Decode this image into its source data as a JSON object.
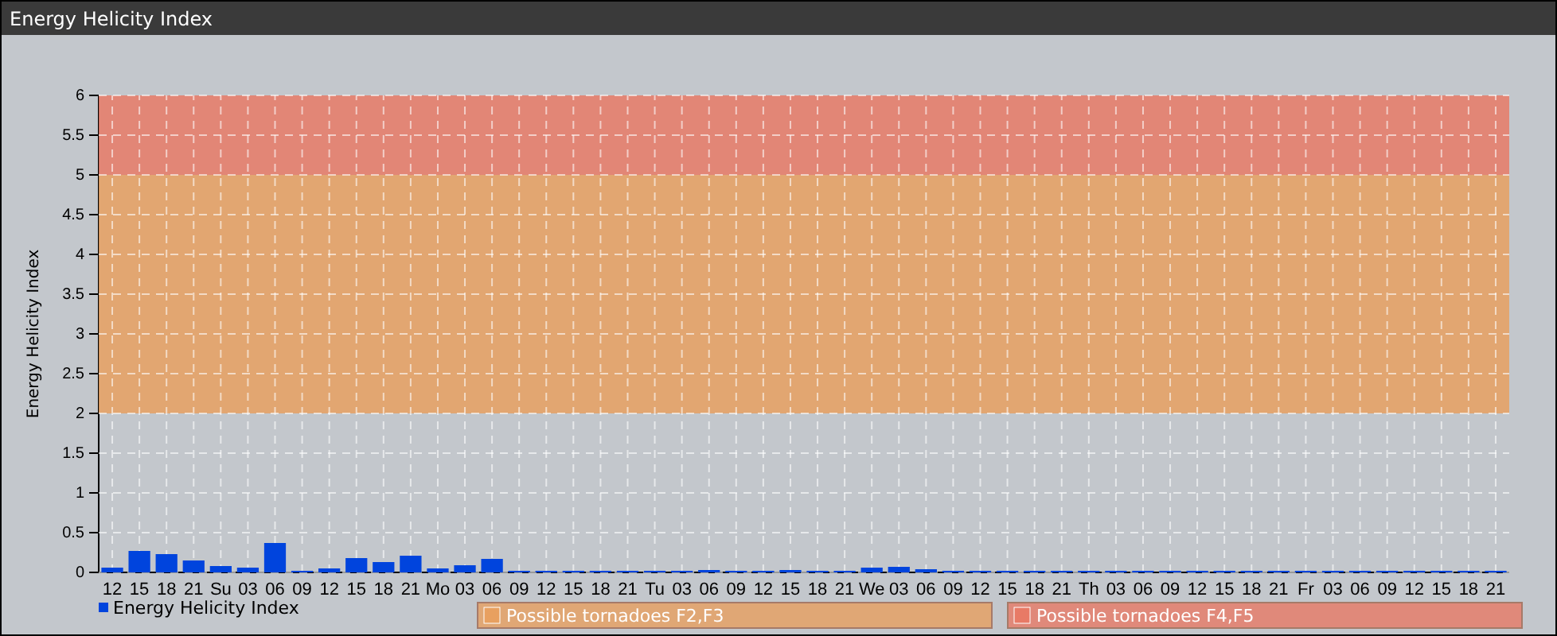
{
  "chart_data": {
    "type": "bar",
    "title": "Energy Helicity Index",
    "ylabel": "Energy Helicity Index",
    "categories": [
      "12",
      "15",
      "18",
      "21",
      "Su",
      "03",
      "06",
      "09",
      "12",
      "15",
      "18",
      "21",
      "Mo",
      "03",
      "06",
      "09",
      "12",
      "15",
      "18",
      "21",
      "Tu",
      "03",
      "06",
      "09",
      "12",
      "15",
      "18",
      "21",
      "We",
      "03",
      "06",
      "09",
      "12",
      "15",
      "18",
      "21",
      "Th",
      "03",
      "06",
      "09",
      "12",
      "15",
      "18",
      "21",
      "Fr",
      "03",
      "06",
      "09",
      "12",
      "15",
      "18",
      "21"
    ],
    "series": [
      {
        "name": "Energy Helicity Index",
        "color": "#0044dd",
        "values": [
          0.06,
          0.27,
          0.23,
          0.15,
          0.08,
          0.06,
          0.37,
          0.02,
          0.05,
          0.18,
          0.13,
          0.21,
          0.05,
          0.09,
          0.17,
          0.02,
          0.02,
          0.02,
          0.02,
          0.02,
          0.02,
          0.02,
          0.03,
          0.02,
          0.02,
          0.03,
          0.02,
          0.02,
          0.06,
          0.07,
          0.04,
          0.02,
          0.02,
          0.02,
          0.02,
          0.02,
          0.02,
          0.02,
          0.02,
          0.02,
          0.02,
          0.02,
          0.02,
          0.02,
          0.02,
          0.02,
          0.02,
          0.02,
          0.02,
          0.02,
          0.02,
          0.02
        ]
      }
    ],
    "ylim": [
      0,
      6
    ],
    "yticks": [
      0,
      0.5,
      1,
      1.5,
      2,
      2.5,
      3,
      3.5,
      4,
      4.5,
      5,
      5.5,
      6
    ],
    "bands": [
      {
        "axis": "y",
        "from": 2,
        "to": 5,
        "label": "Possible tornadoes F2,F3",
        "color": "#e8a060"
      },
      {
        "axis": "y",
        "from": 5,
        "to": 6,
        "label": "Possible tornadoes F4,F5",
        "color": "#e87a66"
      }
    ],
    "grid": true,
    "legend": "bottom left"
  }
}
